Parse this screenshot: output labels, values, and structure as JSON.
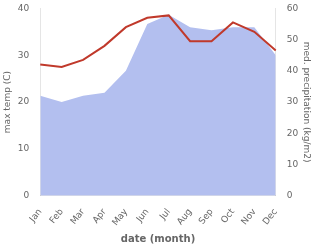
{
  "chart_data": {
    "type": "line",
    "categories": [
      "Jan",
      "Feb",
      "Mar",
      "Apr",
      "May",
      "Jun",
      "Jul",
      "Aug",
      "Sep",
      "Oct",
      "Nov",
      "Dec"
    ],
    "xlabel": "date (month)",
    "ylabel": "max temp (C)",
    "y2label": "med. precipitation (kg/m2)",
    "series": [
      {
        "type": "area",
        "axis": "y2",
        "color": "#b3bfef",
        "values": [
          32,
          30,
          32,
          33,
          40,
          55,
          58,
          54,
          53,
          54,
          54,
          45
        ]
      },
      {
        "type": "line",
        "color": "#c0392b",
        "values": [
          28,
          27.5,
          29,
          32,
          36,
          38,
          38.5,
          33,
          33,
          37,
          35,
          31
        ]
      }
    ],
    "ylim": [
      0,
      40
    ],
    "yticks": [
      0,
      10,
      20,
      30,
      40
    ],
    "y2lim": [
      0,
      60
    ],
    "y2ticks": [
      0,
      10,
      20,
      30,
      40,
      50,
      60
    ],
    "grid": false
  }
}
